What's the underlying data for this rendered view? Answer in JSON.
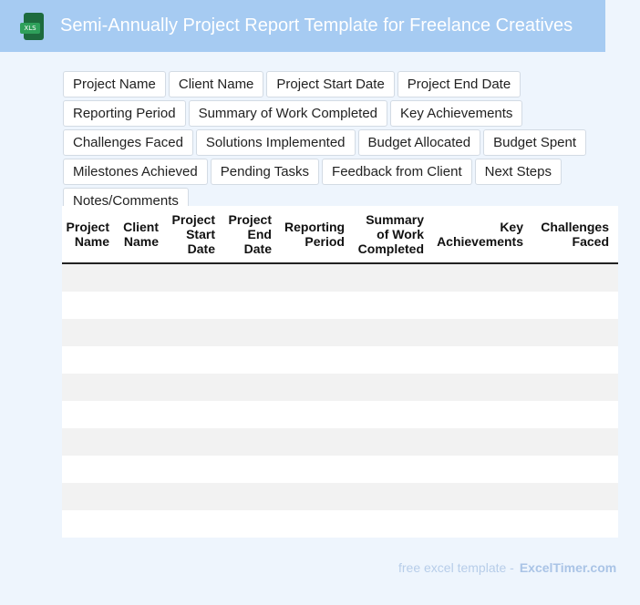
{
  "header": {
    "title": "Semi-Annually Project Report Template for Freelance Creatives",
    "icon_label": "XLS"
  },
  "fields": [
    "Project Name",
    "Client Name",
    "Project Start Date",
    "Project End Date",
    "Reporting Period",
    "Summary of Work Completed",
    "Key Achievements",
    "Challenges Faced",
    "Solutions Implemented",
    "Budget Allocated",
    "Budget Spent",
    "Milestones Achieved",
    "Pending Tasks",
    "Feedback from Client",
    "Next Steps",
    "Notes/Comments"
  ],
  "table": {
    "columns": [
      "Project Name",
      "Client Name",
      "Project Start Date",
      "Project End Date",
      "Reporting Period",
      "Summary of Work Completed",
      "Key Achievements",
      "Challenges Faced"
    ],
    "row_count": 10
  },
  "footer": {
    "prefix": "free excel template -",
    "brand": "ExcelTimer.com"
  },
  "colors": {
    "banner": "#a6cbf2",
    "page_background": "#eef5fd",
    "stripe": "#f2f2f2"
  }
}
